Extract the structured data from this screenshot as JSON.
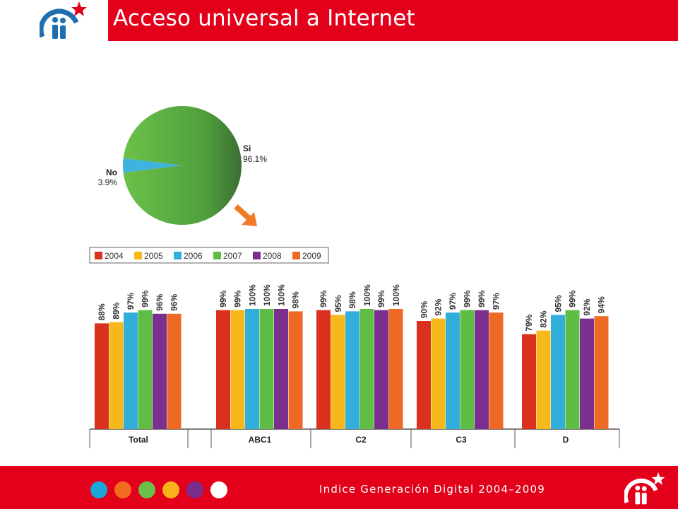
{
  "header": {
    "title": "Acceso universal a Internet"
  },
  "footer": {
    "text": "Indice Generación Digital 2004–2009",
    "dot_colors": [
      "#1aa7d8",
      "#f26b21",
      "#6cbf4b",
      "#f9b31a",
      "#7b2d8e",
      "#ffffff"
    ]
  },
  "brand": {
    "accent": "#e2001a",
    "logo_blue": "#1f6fb0"
  },
  "chart_data": [
    {
      "type": "pie",
      "slices": [
        {
          "label": "Si",
          "value": 96.1,
          "display": "96.1%",
          "color": "#55b043"
        },
        {
          "label": "No",
          "value": 3.9,
          "display": "3.9%",
          "color": "#3fb3e0"
        }
      ]
    },
    {
      "type": "bar",
      "legend_placement": "top-left",
      "categories": [
        "Total",
        "ABC1",
        "C2",
        "C3",
        "D"
      ],
      "ylim": [
        0,
        100
      ],
      "series": [
        {
          "name": "2004",
          "color": "#d9311e",
          "values": [
            88,
            99,
            99,
            90,
            79
          ]
        },
        {
          "name": "2005",
          "color": "#f7b81c",
          "values": [
            89,
            99,
            95,
            92,
            82
          ]
        },
        {
          "name": "2006",
          "color": "#32aedb",
          "values": [
            97,
            100,
            98,
            97,
            95
          ]
        },
        {
          "name": "2007",
          "color": "#5fbd45",
          "values": [
            99,
            100,
            100,
            99,
            99
          ]
        },
        {
          "name": "2008",
          "color": "#7b2f8f",
          "values": [
            96,
            100,
            99,
            99,
            92
          ]
        },
        {
          "name": "2009",
          "color": "#ee6a24",
          "values": [
            96,
            98,
            100,
            97,
            94
          ]
        }
      ]
    }
  ]
}
